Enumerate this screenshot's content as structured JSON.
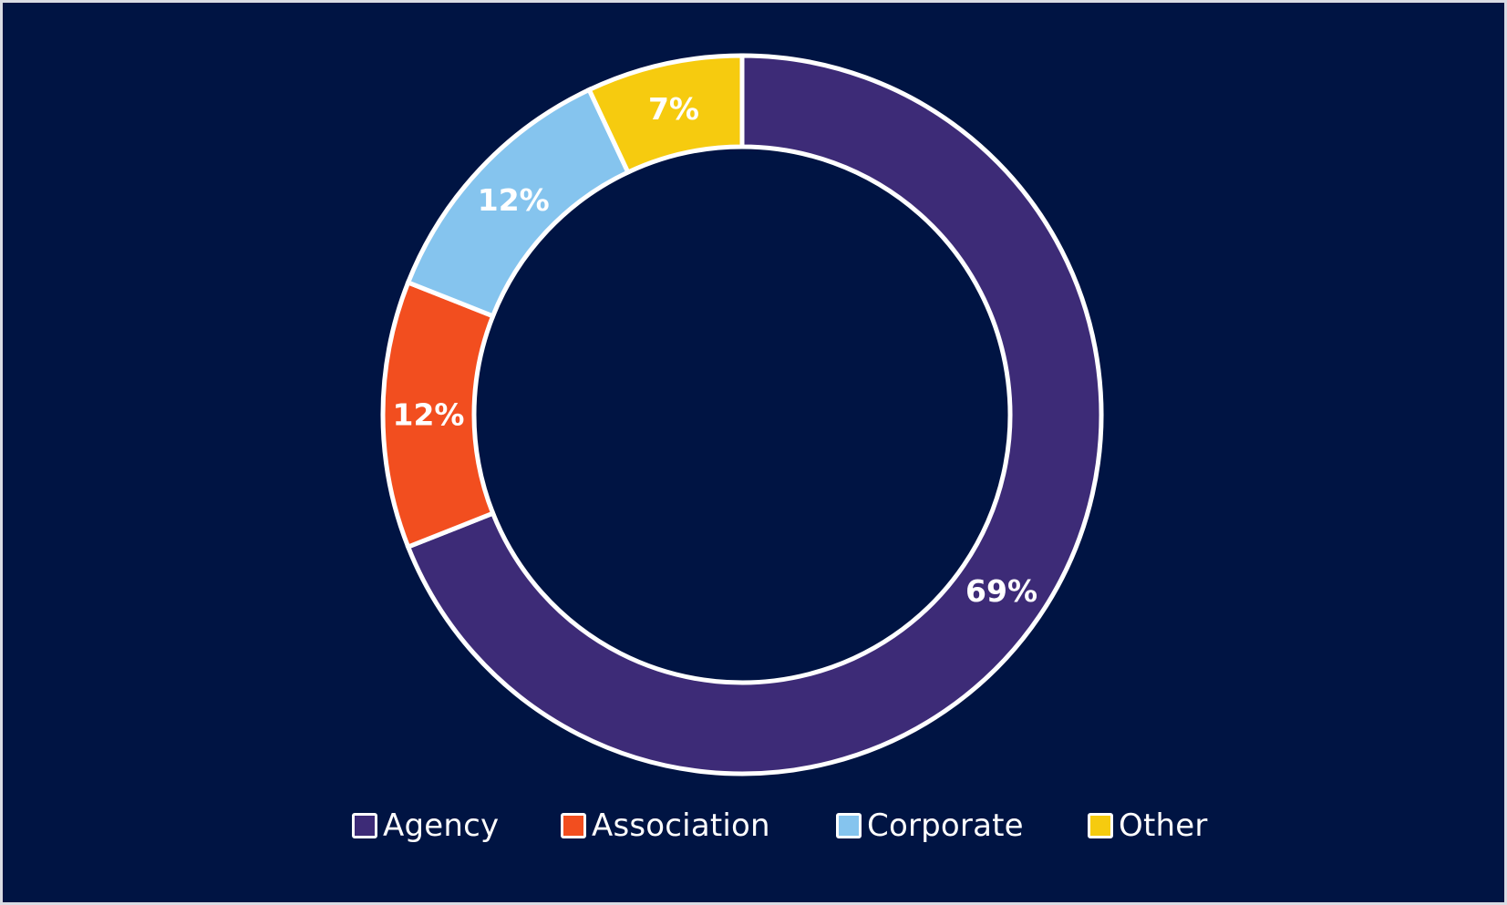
{
  "chart_data": {
    "type": "pie",
    "variant": "donut",
    "categories": [
      "Agency",
      "Association",
      "Corporate",
      "Other"
    ],
    "values": [
      69,
      12,
      12,
      7
    ],
    "value_labels": [
      "69%",
      "12%",
      "12%",
      "7%"
    ],
    "unit": "%",
    "colors": [
      "#3d2b77",
      "#f24e1f",
      "#85c4ee",
      "#f6cb0f"
    ],
    "start_angle": "12 o'clock",
    "direction": "clockwise",
    "legend": "bottom",
    "slice_border_color": "#ffffff"
  },
  "style": {
    "background": "#001443",
    "page_border": "#d9dce3",
    "text_color": "#ffffff"
  },
  "legend": {
    "items": [
      {
        "label": "Agency",
        "color": "#3d2b77"
      },
      {
        "label": "Association",
        "color": "#f24e1f"
      },
      {
        "label": "Corporate",
        "color": "#85c4ee"
      },
      {
        "label": "Other",
        "color": "#f6cb0f"
      }
    ]
  }
}
